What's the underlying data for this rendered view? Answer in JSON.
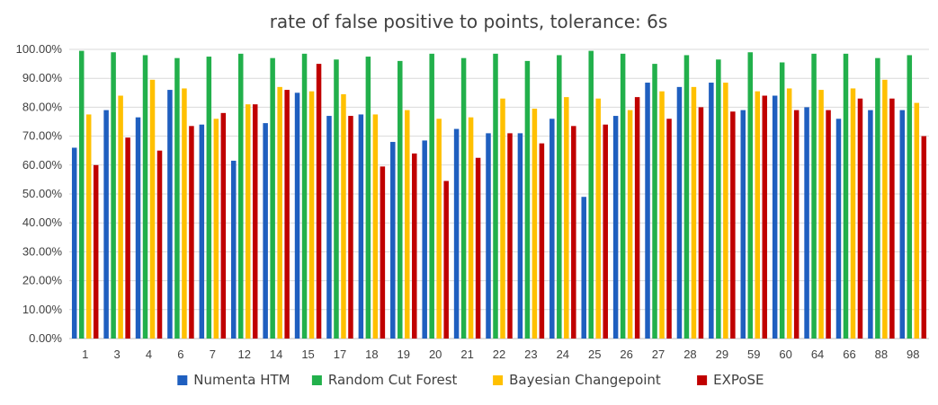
{
  "chart_data": {
    "type": "bar",
    "title": "rate of false positive to points, tolerance: 6s",
    "xlabel": "",
    "ylabel": "",
    "ylim": [
      0,
      100
    ],
    "y_ticks": [
      "0.00%",
      "10.00%",
      "20.00%",
      "30.00%",
      "40.00%",
      "50.00%",
      "60.00%",
      "70.00%",
      "80.00%",
      "90.00%",
      "100.00%"
    ],
    "grid": true,
    "legend_position": "bottom",
    "categories": [
      "1",
      "3",
      "4",
      "6",
      "7",
      "12",
      "14",
      "15",
      "17",
      "18",
      "19",
      "20",
      "21",
      "22",
      "23",
      "24",
      "25",
      "26",
      "27",
      "28",
      "29",
      "59",
      "60",
      "64",
      "66",
      "88",
      "98"
    ],
    "series": [
      {
        "name": "Numenta HTM",
        "color": "#1f5fbf",
        "values": [
          66,
          79,
          76.5,
          86,
          74,
          61.5,
          74.5,
          85,
          77,
          77.5,
          68,
          68.5,
          72.5,
          71,
          71,
          76,
          49,
          77,
          88.5,
          87,
          88.5,
          79,
          84,
          80,
          76,
          79,
          79
        ]
      },
      {
        "name": "Random Cut Forest",
        "color": "#22b04b",
        "values": [
          99.5,
          99,
          98,
          97,
          97.5,
          98.5,
          97,
          98.5,
          96.5,
          97.5,
          96,
          98.5,
          97,
          98.5,
          96,
          98,
          99.5,
          98.5,
          95,
          98,
          96.5,
          99,
          95.5,
          98.5,
          98.5,
          97,
          98
        ]
      },
      {
        "name": "Bayesian Changepoint",
        "color": "#ffc000",
        "values": [
          77.5,
          84,
          89.5,
          86.5,
          76,
          81,
          87,
          85.5,
          84.5,
          77.5,
          79,
          76,
          76.5,
          83,
          79.5,
          83.5,
          83,
          79,
          85.5,
          87,
          88.5,
          85.5,
          86.5,
          86,
          86.5,
          89.5,
          81.5
        ]
      },
      {
        "name": "EXPoSE",
        "color": "#c00000",
        "values": [
          60,
          69.5,
          65,
          73.5,
          78,
          81,
          86,
          95,
          77,
          59.5,
          64,
          54.5,
          62.5,
          71,
          67.5,
          73.5,
          74,
          83.5,
          76,
          80,
          78.5,
          84,
          79,
          79,
          83,
          83,
          70
        ]
      }
    ]
  }
}
